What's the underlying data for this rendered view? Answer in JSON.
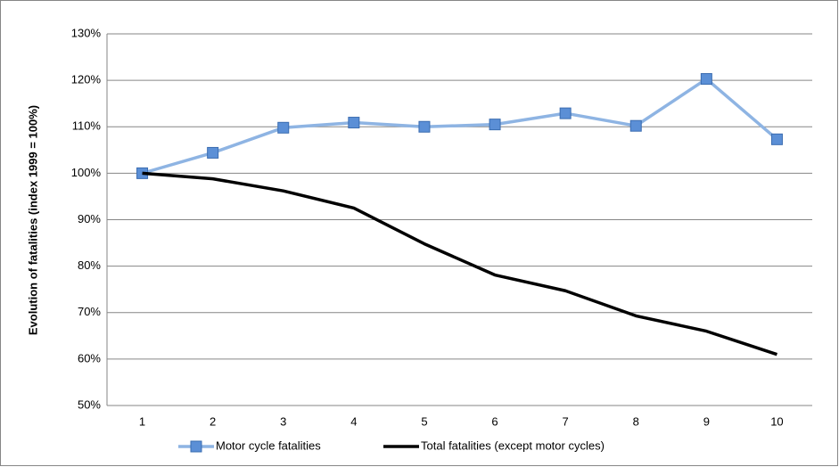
{
  "chart_data": {
    "type": "line",
    "y_label": "Evolution of fatalities (index 1999 = 100%)",
    "categories": [
      "1",
      "2",
      "3",
      "4",
      "5",
      "6",
      "7",
      "8",
      "9",
      "10"
    ],
    "series": [
      {
        "name": "Motor cycle fatalities",
        "color": "#8eb4e3",
        "marker": "square",
        "marker_color": "#5b8fd6",
        "values": [
          100,
          104.4,
          109.8,
          110.9,
          110,
          110.5,
          112.9,
          110.2,
          120.3,
          107.3
        ]
      },
      {
        "name": "Total fatalities (except motor cycles)",
        "color": "#000000",
        "values": [
          100,
          98.8,
          96.2,
          92.5,
          84.8,
          78.1,
          74.7,
          69.3,
          66,
          61
        ]
      }
    ],
    "ylim": [
      50,
      130
    ],
    "yticks": [
      {
        "value": 50,
        "label": "50%"
      },
      {
        "value": 60,
        "label": "60%"
      },
      {
        "value": 70,
        "label": "70%"
      },
      {
        "value": 80,
        "label": "80%"
      },
      {
        "value": 90,
        "label": "90%"
      },
      {
        "value": 100,
        "label": "100%"
      },
      {
        "value": 110,
        "label": "110%"
      },
      {
        "value": 120,
        "label": "120%"
      },
      {
        "value": 130,
        "label": "130%"
      }
    ],
    "grid": true,
    "legend": "bottom"
  }
}
